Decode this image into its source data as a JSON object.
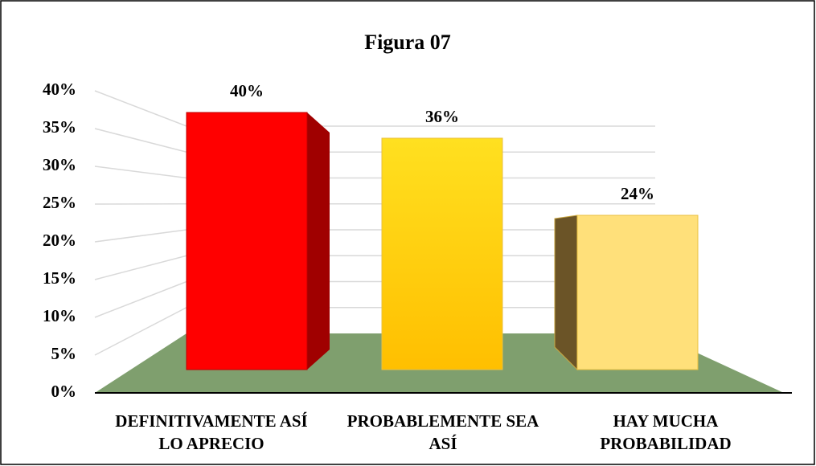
{
  "chart_data": {
    "type": "bar3d",
    "title": "Figura 07",
    "categories": [
      "DEFINITIVAMENTE ASÍ LO APRECIO",
      "PROBABLEMENTE SEA ASÍ",
      "HAY MUCHA PROBABILIDAD"
    ],
    "values": [
      40,
      36,
      24
    ],
    "value_labels": [
      "40%",
      "36%",
      "24%"
    ],
    "colors": [
      "#ff0000",
      "#ffc000",
      "#ffe07a"
    ],
    "ylim": [
      0,
      40
    ],
    "yticks": [
      {
        "value": 0,
        "label": "0%"
      },
      {
        "value": 5,
        "label": "5%"
      },
      {
        "value": 10,
        "label": "10%"
      },
      {
        "value": 15,
        "label": "15%"
      },
      {
        "value": 20,
        "label": "20%"
      },
      {
        "value": 25,
        "label": "25%"
      },
      {
        "value": 30,
        "label": "30%"
      },
      {
        "value": 35,
        "label": "35%"
      },
      {
        "value": 40,
        "label": "40%"
      }
    ],
    "grid": true
  }
}
